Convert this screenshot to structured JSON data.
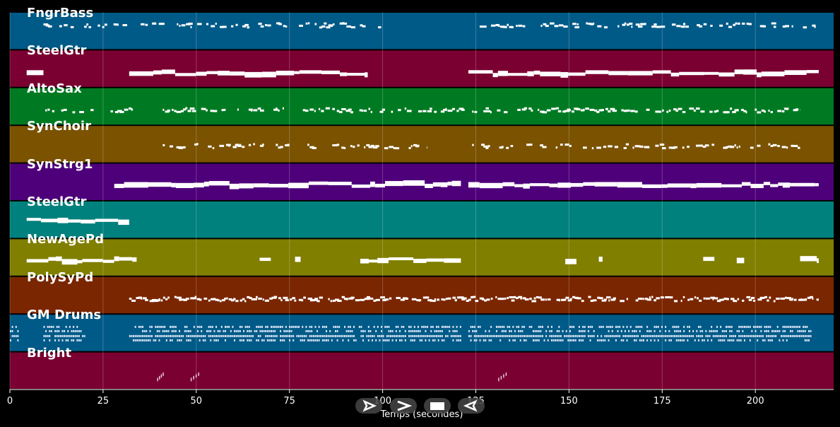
{
  "chart_data": {
    "type": "piano-roll",
    "xlabel": "Temps (secondes)",
    "xlim": [
      0,
      221
    ],
    "x_ticks": [
      0,
      25,
      50,
      75,
      100,
      125,
      150,
      175,
      200
    ],
    "x_tick_labels": [
      "0",
      "25",
      "50",
      "75",
      "100",
      "125",
      "150",
      "175",
      "200"
    ],
    "grid": true,
    "tracks": [
      {
        "name": "FngrBass",
        "color": "#005a87",
        "segments": [
          [
            9,
            100
          ],
          [
            123,
            217
          ]
        ],
        "level": 0.25,
        "density": 0.5,
        "style": "dashed"
      },
      {
        "name": "SteelGtr",
        "color": "#7a0031",
        "segments": [
          [
            4.5,
            9
          ],
          [
            32,
            96
          ],
          [
            123,
            217
          ]
        ],
        "level": 0.55,
        "density": 1,
        "style": "solid"
      },
      {
        "name": "AltoSax",
        "color": "#007a22",
        "segments": [
          [
            9.5,
            24.5
          ],
          [
            27,
            33
          ],
          [
            41,
            122
          ],
          [
            124,
            212
          ]
        ],
        "level": 0.5,
        "density": 0.55,
        "style": "dashed"
      },
      {
        "name": "SynChoir",
        "color": "#7a5200",
        "segments": [
          [
            41,
            75
          ],
          [
            78,
            105
          ],
          [
            107,
            112
          ],
          [
            124,
            212
          ]
        ],
        "level": 0.45,
        "density": 0.45,
        "style": "dashed"
      },
      {
        "name": "SynStrg1",
        "color": "#4e007a",
        "segments": [
          [
            28,
            121
          ],
          [
            123,
            217
          ]
        ],
        "level": 0.5,
        "density": 1,
        "style": "solid"
      },
      {
        "name": "SteelGtr",
        "color": "#00817d",
        "segments": [
          [
            4.5,
            32
          ]
        ],
        "level": 0.45,
        "density": 1,
        "style": "solid"
      },
      {
        "name": "NewAgePd",
        "color": "#807f00",
        "segments": [
          [
            4.5,
            34
          ],
          [
            67,
            70
          ],
          [
            76.5,
            78
          ],
          [
            94,
            121
          ],
          [
            149,
            152
          ],
          [
            158,
            159
          ],
          [
            186,
            189
          ],
          [
            195,
            197
          ],
          [
            212,
            217
          ]
        ],
        "level": 0.5,
        "density": 1,
        "style": "solid"
      },
      {
        "name": "PolySyPd",
        "color": "#7a2600",
        "segments": [
          [
            32,
            217
          ]
        ],
        "level": 0.5,
        "density": 0.75,
        "style": "dashed"
      },
      {
        "name": "GM Drums",
        "color": "#005a87",
        "segments": [
          [
            0,
            2
          ],
          [
            9,
            20
          ],
          [
            32,
            121
          ],
          [
            123,
            215
          ]
        ],
        "level": 0.5,
        "density": 1,
        "style": "drums"
      },
      {
        "name": "Bright",
        "color": "#7a0031",
        "segments": [
          [
            39.5,
            41
          ],
          [
            48.5,
            50.5
          ],
          [
            131,
            133
          ]
        ],
        "level": 0.5,
        "density": 1,
        "style": "sparse"
      }
    ]
  },
  "controls": [
    {
      "name": "play-forward-button",
      "icon": "play-outline-icon"
    },
    {
      "name": "fast-forward-button",
      "icon": "chevron-right-icon"
    },
    {
      "name": "stop-button",
      "icon": "stop-icon"
    },
    {
      "name": "play-reverse-button",
      "icon": "play-back-outline-icon"
    }
  ]
}
